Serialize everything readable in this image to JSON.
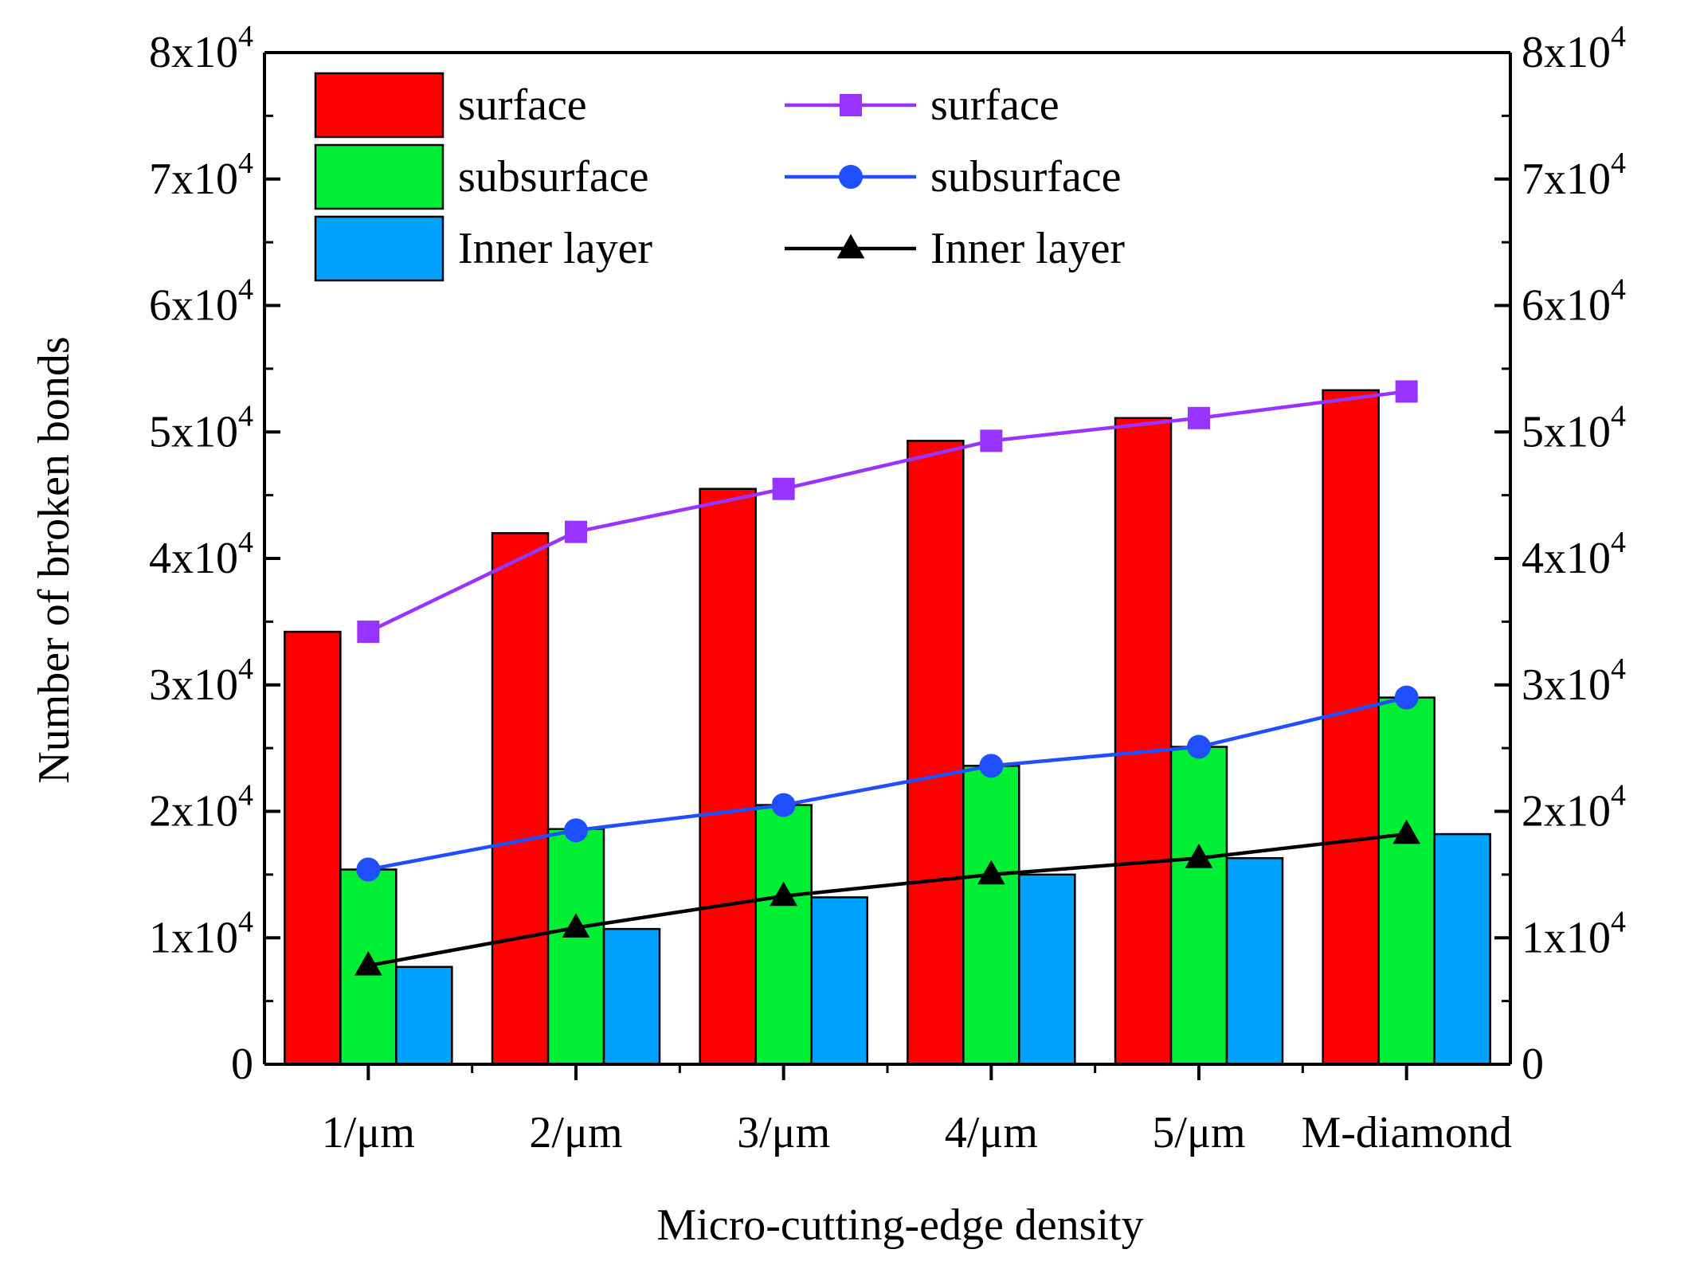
{
  "chart_data": {
    "type": "bar",
    "categories": [
      "1/μm",
      "2/μm",
      "3/μm",
      "4/μm",
      "5/μm",
      "M-diamond"
    ],
    "bar_series": [
      {
        "name": "surface",
        "color": "#ff0000",
        "values": [
          34200,
          42000,
          45500,
          49300,
          51100,
          53300
        ]
      },
      {
        "name": "subsurface",
        "color": "#00ee33",
        "values": [
          15400,
          18600,
          20500,
          23600,
          25100,
          29000
        ]
      },
      {
        "name": "Inner layer",
        "color": "#00a2ff",
        "values": [
          7700,
          10700,
          13200,
          15000,
          16300,
          18200
        ]
      }
    ],
    "line_series": [
      {
        "name": "surface",
        "color": "#9933ff",
        "marker": "square",
        "values": [
          34200,
          42100,
          45500,
          49300,
          51100,
          53200
        ]
      },
      {
        "name": "subsurface",
        "color": "#1f4fff",
        "marker": "circle",
        "values": [
          15400,
          18500,
          20500,
          23600,
          25100,
          29000
        ]
      },
      {
        "name": "Inner layer",
        "color": "#000000",
        "marker": "triangle",
        "values": [
          7800,
          10800,
          13300,
          15000,
          16300,
          18200
        ]
      }
    ],
    "title": "",
    "xlabel": "Micro-cutting-edge density",
    "ylabel": "Number of broken bonds",
    "ylim": [
      0,
      80000
    ],
    "yticks": [
      {
        "value": 0,
        "label": "0"
      },
      {
        "value": 10000,
        "base": "1x10",
        "exp": "4"
      },
      {
        "value": 20000,
        "base": "2x10",
        "exp": "4"
      },
      {
        "value": 30000,
        "base": "3x10",
        "exp": "4"
      },
      {
        "value": 40000,
        "base": "4x10",
        "exp": "4"
      },
      {
        "value": 50000,
        "base": "5x10",
        "exp": "4"
      },
      {
        "value": 60000,
        "base": "6x10",
        "exp": "4"
      },
      {
        "value": 70000,
        "base": "7x10",
        "exp": "4"
      },
      {
        "value": 80000,
        "base": "8x10",
        "exp": "4"
      }
    ],
    "legend_position": "top"
  }
}
